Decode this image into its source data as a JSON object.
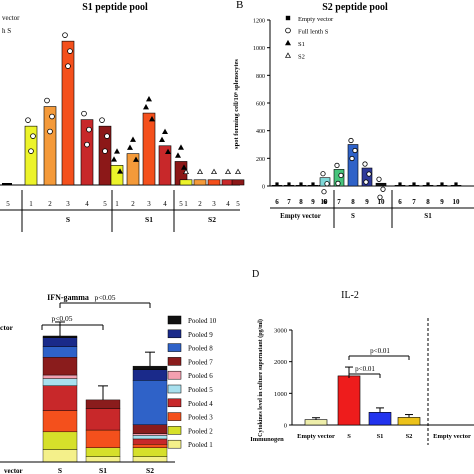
{
  "chart_data": [
    {
      "type": "bar",
      "title": "S1 peptide pool",
      "legend": [
        "Empty vector",
        "Full lenth S"
      ],
      "groups": [
        {
          "name": "S",
          "categories": [
            "1",
            "2",
            "3",
            "4",
            "5"
          ],
          "values": [
            45,
            60,
            110,
            50,
            45
          ],
          "colors": [
            "#ecf32a",
            "#f49a3a",
            "#f4501c",
            "#c8282a",
            "#8c1818"
          ]
        },
        {
          "name": "S1",
          "categories": [
            "1",
            "2",
            "3",
            "4",
            "5"
          ],
          "values": [
            15,
            24,
            55,
            30,
            18
          ],
          "colors": [
            "#ecf32a",
            "#f49a3a",
            "#f4501c",
            "#c8282a",
            "#8c1818"
          ]
        },
        {
          "name": "S2",
          "categories": [
            "1",
            "2",
            "3",
            "4",
            "5"
          ],
          "values": [
            4,
            4,
            4,
            4,
            4
          ],
          "colors": [
            "#ecf32a",
            "#f49a3a",
            "#f4501c",
            "#c8282a",
            "#8c1818"
          ]
        }
      ]
    },
    {
      "type": "bar",
      "panel_label": "B",
      "title": "S2 peptide pool",
      "ylabel": "spot forming cell/10⁶ splenocytes",
      "ylim": [
        0,
        1200
      ],
      "yticks": [
        "0",
        "200",
        "400",
        "600",
        "800",
        "1000",
        "1200"
      ],
      "legend": [
        "Empty vector",
        "Full lenth S",
        "S1",
        "S2"
      ],
      "groups": [
        {
          "name": "Empty vector",
          "categories": [
            "6",
            "7",
            "8",
            "9",
            "10"
          ],
          "values": [
            5,
            5,
            5,
            5,
            5
          ],
          "colors": [
            "#222222",
            "#222222",
            "#222222",
            "#222222",
            "#222222"
          ]
        },
        {
          "name": "S",
          "categories": [
            "6",
            "7",
            "8",
            "9",
            "10"
          ],
          "values": [
            60,
            120,
            300,
            130,
            20
          ],
          "colors": [
            "#7fd8d8",
            "#47c47c",
            "#2f62c8",
            "#2f3a9a",
            "#111111"
          ]
        },
        {
          "name": "S1",
          "categories": [
            "6",
            "7",
            "8",
            "9",
            "10"
          ],
          "values": [
            5,
            5,
            5,
            5,
            5
          ],
          "colors": [
            "#222222",
            "#222222",
            "#222222",
            "#222222",
            "#222222"
          ]
        }
      ]
    },
    {
      "type": "bar",
      "stacked": true,
      "title": "IFN-gamma",
      "categories": [
        "vector",
        "S",
        "S1",
        "S2"
      ],
      "series": [
        {
          "name": "Pooled 1",
          "color": "#f4f08a",
          "values": [
            0,
            0.07,
            0.03,
            0.03
          ]
        },
        {
          "name": "Pooled 2",
          "color": "#d6e02a",
          "values": [
            0,
            0.1,
            0.05,
            0.05
          ]
        },
        {
          "name": "Pooled 3",
          "color": "#f4501c",
          "values": [
            0,
            0.12,
            0.1,
            0.02
          ]
        },
        {
          "name": "Pooled 4",
          "color": "#c8282a",
          "values": [
            0,
            0.14,
            0.12,
            0.03
          ]
        },
        {
          "name": "Pooled 5",
          "color": "#a8e0ee",
          "values": [
            0,
            0.04,
            0.0,
            0.02
          ]
        },
        {
          "name": "Pooled 6",
          "color": "#f4a0b0",
          "values": [
            0,
            0.02,
            0.0,
            0.01
          ]
        },
        {
          "name": "Pooled 7",
          "color": "#8a1c1c",
          "values": [
            0,
            0.1,
            0.05,
            0.05
          ]
        },
        {
          "name": "Pooled 8",
          "color": "#2f62c8",
          "values": [
            0,
            0.06,
            0.0,
            0.25
          ]
        },
        {
          "name": "Pooled 9",
          "color": "#1a2a8a",
          "values": [
            0,
            0.05,
            0.0,
            0.06
          ]
        },
        {
          "name": "Pooled 10",
          "color": "#111111",
          "values": [
            0,
            0.01,
            0.0,
            0.02
          ]
        }
      ],
      "annotations": [
        "p<0.05",
        "p<0.05"
      ]
    },
    {
      "type": "bar",
      "panel_label": "D",
      "title": "IL-2",
      "ylabel": "Cytokines level in culture supernatant (pg/ml)",
      "xlabel_group": "Immunogen",
      "ylim": [
        0,
        3000
      ],
      "yticks": [
        "0",
        "1000",
        "2000",
        "3000"
      ],
      "categories": [
        "Empty vector",
        "S",
        "S1",
        "S2"
      ],
      "values": [
        170,
        1550,
        400,
        240
      ],
      "errors": [
        60,
        280,
        140,
        90
      ],
      "colors": [
        "#eeeeaa",
        "#ee1c1c",
        "#2233ee",
        "#ecc21a"
      ],
      "annotations": [
        "p<0.01",
        "p<0.01"
      ],
      "extra_category": "Empty vector"
    }
  ],
  "labels": {
    "panel_a_legend_1": "vector",
    "panel_a_legend_2": "h S",
    "panel_a_x_group_left": "5",
    "panel_c_left_group": "ctor"
  }
}
